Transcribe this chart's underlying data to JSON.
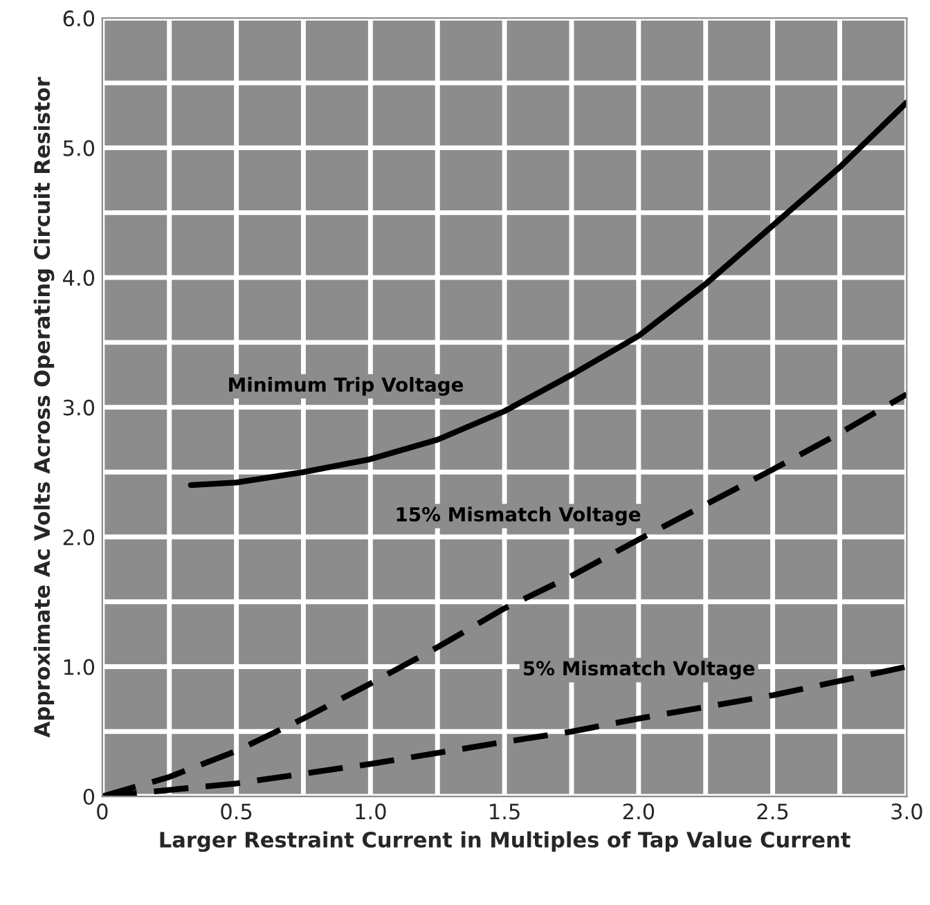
{
  "chart_data": {
    "type": "line",
    "xlabel": "Larger Restraint Current in Multiples of Tap Value Current",
    "ylabel": "Approximate Ac Volts Across Operating Circuit Resistor",
    "xlim": [
      0,
      3.0
    ],
    "ylim": [
      0,
      6.0
    ],
    "xticks": [
      0,
      {
        "value": 0.25,
        "label": null
      },
      0.5,
      {
        "value": 0.75,
        "label": null
      },
      {
        "value": 1.0,
        "label": "1.0"
      },
      {
        "value": 1.25,
        "label": null
      },
      1.5,
      {
        "value": 1.75,
        "label": null
      },
      {
        "value": 2.0,
        "label": "2.0"
      },
      {
        "value": 2.25,
        "label": null
      },
      2.5,
      {
        "value": 2.75,
        "label": null
      },
      {
        "value": 3.0,
        "label": "3.0"
      }
    ],
    "yticks": [
      0,
      {
        "value": 0.5,
        "label": null
      },
      {
        "value": 1.0,
        "label": "1.0"
      },
      {
        "value": 1.5,
        "label": null
      },
      {
        "value": 2.0,
        "label": "2.0"
      },
      {
        "value": 2.5,
        "label": null
      },
      {
        "value": 3.0,
        "label": "3.0"
      },
      {
        "value": 3.5,
        "label": null
      },
      {
        "value": 4.0,
        "label": "4.0"
      },
      {
        "value": 4.5,
        "label": null
      },
      {
        "value": 5.0,
        "label": "5.0"
      },
      {
        "value": 5.5,
        "label": null
      },
      {
        "value": 6.0,
        "label": "6.0"
      }
    ],
    "grid": true,
    "marker": "none",
    "series": [
      {
        "name": "Minimum Trip Voltage",
        "color": "#000000",
        "line_style": "solid",
        "x": [
          0.33,
          0.5,
          0.75,
          1.0,
          1.25,
          1.5,
          1.75,
          2.0,
          2.25,
          2.5,
          2.75,
          3.0
        ],
        "values": [
          2.4,
          2.42,
          2.5,
          2.6,
          2.75,
          2.97,
          3.25,
          3.55,
          3.95,
          4.4,
          4.85,
          5.35
        ]
      },
      {
        "name": "15% Mismatch Voltage",
        "color": "#000000",
        "line_style": "dashed",
        "x": [
          0,
          0.25,
          0.5,
          0.75,
          1.0,
          1.25,
          1.5,
          1.75,
          2.0,
          2.25,
          2.5,
          2.75,
          3.0
        ],
        "values": [
          0,
          0.15,
          0.35,
          0.6,
          0.87,
          1.15,
          1.45,
          1.7,
          1.98,
          2.25,
          2.52,
          2.8,
          3.1
        ]
      },
      {
        "name": "5% Mismatch Voltage",
        "color": "#000000",
        "line_style": "dashed",
        "x": [
          0,
          0.5,
          1.0,
          1.5,
          1.75,
          2.0,
          2.5,
          3.0
        ],
        "values": [
          0,
          0.1,
          0.25,
          0.42,
          0.5,
          0.6,
          0.78,
          1.0
        ]
      }
    ]
  }
}
